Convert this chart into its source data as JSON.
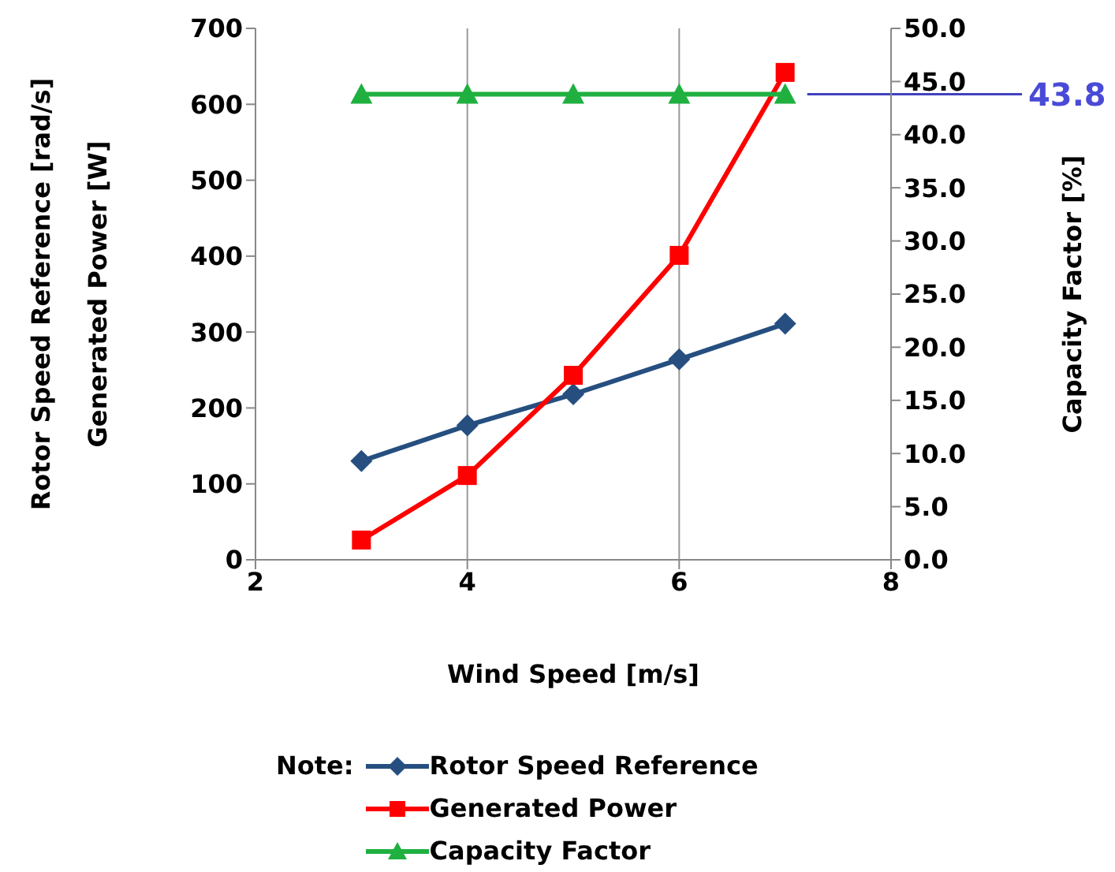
{
  "chart_data": {
    "type": "line",
    "xlabel": "Wind Speed [m/s]",
    "ylabel": "Rotor Speed Reference [rad/s]\nGenerated Power [W]",
    "y2label": "Capacity Factor [%]",
    "legend_title": "Note:",
    "x": [
      3,
      4,
      5,
      6,
      7
    ],
    "series": [
      {
        "name": "Rotor Speed Reference",
        "color": "#264f80",
        "marker": "diamond",
        "values": [
          130,
          177,
          218,
          264,
          311
        ]
      },
      {
        "name": "Generated Power",
        "color": "#ff0000",
        "marker": "square",
        "values": [
          26,
          111,
          243,
          401,
          642
        ]
      },
      {
        "name": "Capacity Factor",
        "color": "#1fb040",
        "marker": "triangle",
        "axis": "y2",
        "values": [
          43.8,
          43.8,
          43.8,
          43.8,
          43.8
        ]
      }
    ],
    "xlim": [
      2,
      8
    ],
    "xticks": [
      2,
      4,
      6,
      8
    ],
    "ylim": [
      0,
      700
    ],
    "yticks": [
      0,
      100,
      200,
      300,
      400,
      500,
      600,
      700
    ],
    "y2lim": [
      0,
      50
    ],
    "y2ticks": [
      {
        "value": 0,
        "label": "0.0"
      },
      {
        "value": 5,
        "label": "5.0"
      },
      {
        "value": 10,
        "label": "10.0"
      },
      {
        "value": 15,
        "label": "15.0"
      },
      {
        "value": 20,
        "label": "20.0"
      },
      {
        "value": 25,
        "label": "25.0"
      },
      {
        "value": 30,
        "label": "30.0"
      },
      {
        "value": 35,
        "label": "35.0"
      },
      {
        "value": 40,
        "label": "40.0"
      },
      {
        "value": 45,
        "label": "45.0"
      },
      {
        "value": 50,
        "label": "50.0"
      }
    ],
    "annotations": [
      "43.8"
    ],
    "grid": true,
    "legend": "bottom",
    "line_style": "solid"
  }
}
